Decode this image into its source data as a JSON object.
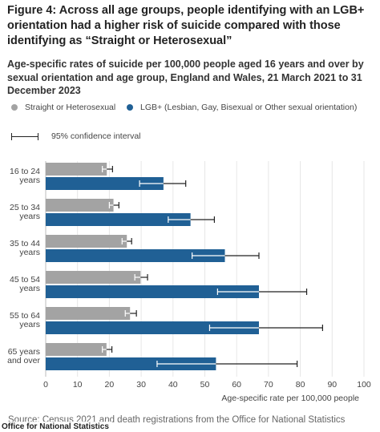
{
  "title": "Figure 4: Across all age groups, people identifying with an LGB+ orientation had a higher risk of suicide compared with those identifying as “Straight or Heterosexual”",
  "subtitle": "Age-specific rates of suicide per 100,000 people aged 16 years and over by sexual orientation and age group, England and Wales, 21 March 2021 to 31 December 2023",
  "legend": {
    "straight_label": "Straight or Heterosexual",
    "lgb_label": "LGB+ (Lesbian, Gay, Bisexual or Other sexual orientation)",
    "ci_label": "95% confidence interval"
  },
  "colors": {
    "straight": "#a3a3a3",
    "lgb": "#206095",
    "errorbar": "#222222",
    "grid": "#e6e6e6"
  },
  "source": "Source: Census 2021 and death registrations from the Office for National Statistics",
  "credit": "Office for National Statistics",
  "chart_data": {
    "type": "bar",
    "orientation": "horizontal",
    "categories": [
      "16 to 24 years",
      "25 to 34 years",
      "35 to 44 years",
      "45 to 54 years",
      "55 to 64 years",
      "65 years and over"
    ],
    "category_lines": [
      [
        "16 to 24",
        "years"
      ],
      [
        "25 to 34",
        "years"
      ],
      [
        "35 to 44",
        "years"
      ],
      [
        "45 to 54",
        "years"
      ],
      [
        "55 to 64",
        "years"
      ],
      [
        "65 years",
        "and over"
      ]
    ],
    "series": [
      {
        "name": "Straight or Heterosexual",
        "values": [
          19.2,
          21.3,
          25.5,
          29.8,
          26.5,
          19.1
        ],
        "ci_low": [
          17.8,
          20.0,
          24.0,
          28.0,
          25.0,
          17.8
        ],
        "ci_high": [
          21.0,
          23.0,
          27.0,
          32.0,
          28.5,
          20.8
        ]
      },
      {
        "name": "LGB+ (Lesbian, Gay, Bisexual or Other sexual orientation)",
        "values": [
          37.0,
          45.5,
          56.3,
          67.0,
          67.0,
          53.5
        ],
        "ci_low": [
          29.5,
          38.5,
          46.0,
          54.0,
          51.5,
          35.0
        ],
        "ci_high": [
          44.0,
          53.0,
          67.0,
          82.0,
          87.0,
          79.0
        ]
      }
    ],
    "xlabel": "Age-specific rate per 100,000 people",
    "xlim": [
      0,
      100
    ],
    "xticks": [
      0,
      10,
      20,
      30,
      40,
      50,
      60,
      70,
      80,
      90,
      100
    ],
    "grid": true
  }
}
